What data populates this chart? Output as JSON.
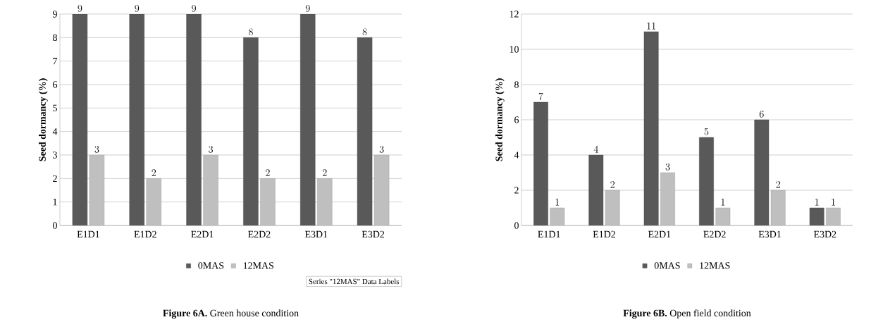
{
  "chart_data": [
    {
      "type": "bar",
      "title": "**Figure 6A.** Green house condition",
      "ylabel": "Seed dormancy (%)",
      "categories": [
        "E1D1",
        "E1D2",
        "E2D1",
        "E2D2",
        "E3D1",
        "E3D2"
      ],
      "series": [
        {
          "name": "0MAS",
          "color": "#595959",
          "values": [
            9,
            9,
            9,
            8,
            9,
            8
          ]
        },
        {
          "name": "12MAS",
          "color": "#bfbfbf",
          "values": [
            3,
            2,
            3,
            2,
            2,
            3
          ]
        }
      ],
      "ylim": [
        0,
        9
      ],
      "yticks": [
        0,
        1,
        2,
        3,
        4,
        5,
        6,
        7,
        8,
        9
      ],
      "grid": "y",
      "legend": "bottom",
      "data_labels": true,
      "annotations": [
        "Series \"12MAS\" Data Labels"
      ]
    },
    {
      "type": "bar",
      "title": "**Figure 6B.** Open field condition",
      "ylabel": "Seed dormancy (%)",
      "categories": [
        "E1D1",
        "E1D2",
        "E2D1",
        "E2D2",
        "E3D1",
        "E3D2"
      ],
      "series": [
        {
          "name": "0MAS",
          "color": "#595959",
          "values": [
            7,
            4,
            11,
            5,
            6,
            1
          ]
        },
        {
          "name": "12MAS",
          "color": "#bfbfbf",
          "values": [
            1,
            2,
            3,
            1,
            2,
            1
          ]
        }
      ],
      "ylim": [
        0,
        12
      ],
      "yticks": [
        0,
        2,
        4,
        6,
        8,
        10,
        12
      ],
      "grid": "y",
      "legend": "bottom",
      "data_labels": true
    }
  ]
}
